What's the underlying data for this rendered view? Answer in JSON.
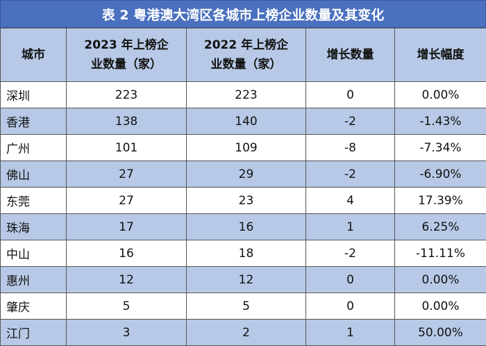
{
  "title": "表 2  粤港澳大湾区各城市上榜企业数量及其变化",
  "table": {
    "header": [
      "城市",
      "2023 年上榜企业数量（家）",
      "2022 年上榜企业数量（家）",
      "增长数量",
      "增长幅度"
    ],
    "rows": [
      [
        "深圳",
        "223",
        "223",
        "0",
        "0.00%"
      ],
      [
        "香港",
        "138",
        "140",
        "-2",
        "-1.43%"
      ],
      [
        "广州",
        "101",
        "109",
        "-8",
        "-7.34%"
      ],
      [
        "佛山",
        "27",
        "29",
        "-2",
        "-6.90%"
      ],
      [
        "东莞",
        "27",
        "23",
        "4",
        "17.39%"
      ],
      [
        "珠海",
        "17",
        "16",
        "1",
        "6.25%"
      ],
      [
        "中山",
        "16",
        "18",
        "-2",
        "-11.11%"
      ],
      [
        "惠州",
        "12",
        "12",
        "0",
        "0.00%"
      ],
      [
        "肇庆",
        "5",
        "5",
        "0",
        "0.00%"
      ],
      [
        "江门",
        "3",
        "2",
        "1",
        "50.00%"
      ]
    ]
  }
}
